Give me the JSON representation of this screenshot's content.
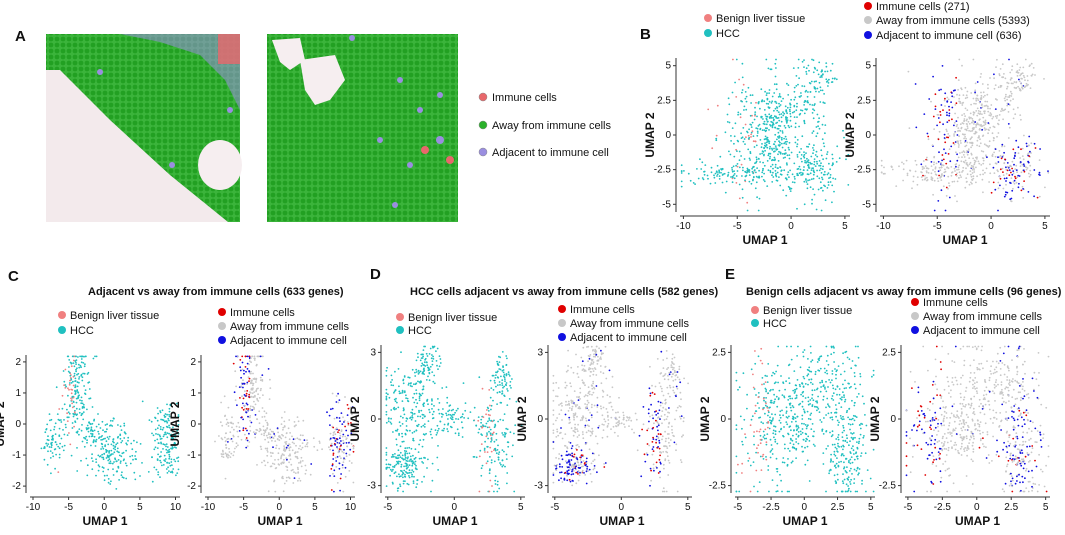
{
  "panels": {
    "A": "A",
    "B": "B",
    "C": "C",
    "D": "D",
    "E": "E"
  },
  "panelA_legend": [
    "Immune cells",
    "Away from immune cells",
    "Adjacent to immune cell"
  ],
  "colors": {
    "immune": "#e8686b",
    "away": "#2ab02a",
    "adjacent": "#9a8ee0",
    "benign": "#f08080",
    "hcc": "#20c0c0",
    "immune_red": "#e00000",
    "away_grey": "#c8c8c8",
    "adjacent_blue": "#1010e0"
  },
  "legends": {
    "B_left": [
      "Benign liver tissue",
      "HCC"
    ],
    "B_right": [
      "Immune cells (271)",
      "Away from immune cells (5393)",
      "Adjacent to immune cell (636)"
    ],
    "two": [
      "Benign liver tissue",
      "HCC"
    ],
    "three": [
      "Immune cells",
      "Away from immune cells",
      "Adjacent to immune cell"
    ]
  },
  "titles": {
    "C": "Adjacent vs away from immune cells (633 genes)",
    "D": "HCC cells adjacent vs away from immune cells (582 genes)",
    "E": "Benign cells adjacent vs away from immune cells (96 genes)"
  },
  "axes": {
    "x": "UMAP 1",
    "y": "UMAP 2"
  },
  "chart_data": [
    {
      "type": "scatter",
      "panel": "B-left",
      "xlabel": "UMAP 1",
      "ylabel": "UMAP 2",
      "xticks": [
        "-10",
        "-5",
        "0",
        "5"
      ],
      "yticks": [
        "5",
        "2.5",
        "0",
        "-2.5",
        "-5"
      ],
      "legend": [
        "Benign liver tissue",
        "HCC"
      ]
    },
    {
      "type": "scatter",
      "panel": "B-right",
      "xlabel": "UMAP 1",
      "ylabel": "UMAP 2",
      "xticks": [
        "-10",
        "-5",
        "0",
        "5"
      ],
      "yticks": [
        "5",
        "2.5",
        "0",
        "-2.5",
        "-5"
      ],
      "legend": [
        "Immune cells (271)",
        "Away from immune cells (5393)",
        "Adjacent to immune cell (636)"
      ]
    },
    {
      "type": "scatter",
      "panel": "C-left",
      "title": "Adjacent vs away from immune cells (633 genes)",
      "xlabel": "UMAP 1",
      "ylabel": "UMAP 2",
      "xticks": [
        "-10",
        "-5",
        "0",
        "5",
        "10"
      ],
      "yticks": [
        "2",
        "1",
        "0",
        "-1",
        "-2"
      ],
      "legend": [
        "Benign liver tissue",
        "HCC"
      ]
    },
    {
      "type": "scatter",
      "panel": "C-right",
      "xlabel": "UMAP 1",
      "ylabel": "UMAP 2",
      "xticks": [
        "-10",
        "-5",
        "0",
        "5",
        "10"
      ],
      "yticks": [
        "2",
        "1",
        "0",
        "-1",
        "-2"
      ],
      "legend": [
        "Immune cells",
        "Away from immune cells",
        "Adjacent to immune cell"
      ]
    },
    {
      "type": "scatter",
      "panel": "D-left",
      "title": "HCC cells adjacent vs away from immune cells (582 genes)",
      "xlabel": "UMAP 1",
      "ylabel": "UMAP 2",
      "xticks": [
        "-5",
        "0",
        "5"
      ],
      "yticks": [
        "3",
        "0",
        "-3"
      ],
      "legend": [
        "Benign liver tissue",
        "HCC"
      ]
    },
    {
      "type": "scatter",
      "panel": "D-right",
      "xlabel": "UMAP 1",
      "ylabel": "UMAP 2",
      "xticks": [
        "-5",
        "0",
        "5"
      ],
      "yticks": [
        "3",
        "0",
        "-3"
      ],
      "legend": [
        "Immune cells",
        "Away from immune cells",
        "Adjacent to immune cell"
      ]
    },
    {
      "type": "scatter",
      "panel": "E-left",
      "title": "Benign cells adjacent vs away from immune cells (96 genes)",
      "xlabel": "UMAP 1",
      "ylabel": "UMAP 2",
      "xticks": [
        "-5",
        "-2.5",
        "0",
        "2.5",
        "5"
      ],
      "yticks": [
        "2.5",
        "0",
        "-2.5"
      ],
      "legend": [
        "Benign liver tissue",
        "HCC"
      ]
    },
    {
      "type": "scatter",
      "panel": "E-right",
      "xlabel": "UMAP 1",
      "ylabel": "UMAP 2",
      "xticks": [
        "-5",
        "-2.5",
        "0",
        "2.5",
        "5"
      ],
      "yticks": [
        "2.5",
        "0",
        "-2.5"
      ],
      "legend": [
        "Immune cells",
        "Away from immune cells",
        "Adjacent to immune cell"
      ]
    }
  ]
}
